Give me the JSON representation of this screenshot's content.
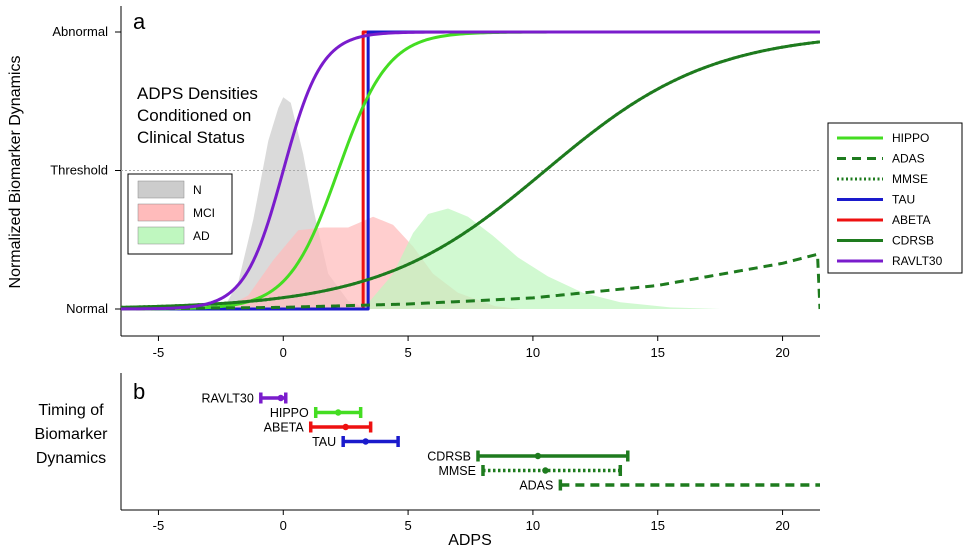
{
  "chart_data": [
    {
      "panel": "a",
      "type": "line",
      "ylabel": "Normalized Biomarker Dynamics",
      "xlim": [
        -6.5,
        21.5
      ],
      "ylim": [
        -0.1,
        1.06
      ],
      "x_ticks": [
        -5,
        0,
        5,
        10,
        15,
        20
      ],
      "y_ticks": [
        {
          "value": 0,
          "label": "Normal"
        },
        {
          "value": 0.5,
          "label": "Threshold"
        },
        {
          "value": 1,
          "label": "Abnormal"
        }
      ],
      "threshold_line": {
        "y": 0.5,
        "color": "#aaaaaa",
        "style": "dotted"
      },
      "inset_title": [
        "ADPS Densities",
        "Conditioned on",
        "Clinical Status"
      ],
      "series": [
        {
          "name": "HIPPO",
          "color": "#44dd22",
          "style": "solid",
          "form": "sigmoid",
          "midpoint": 2.2,
          "slope": 1.0
        },
        {
          "name": "ADAS",
          "color": "#1e7b1e",
          "style": "dashed",
          "form": "exp",
          "x": [
            -6.5,
            0,
            5,
            10,
            15,
            20,
            21.5
          ],
          "y": [
            0.0,
            0.006,
            0.018,
            0.04,
            0.085,
            0.165,
            0.2
          ]
        },
        {
          "name": "MMSE",
          "color": "#1e7b1e",
          "style": "dotted",
          "form": "sigmoid",
          "midpoint": 10.5,
          "slope": 0.3,
          "y0": 0.0
        },
        {
          "name": "TAU",
          "color": "#1a1acc",
          "style": "solid",
          "form": "step",
          "step_x": 3.4
        },
        {
          "name": "ABETA",
          "color": "#ee1111",
          "style": "solid",
          "form": "step",
          "step_x": 3.2
        },
        {
          "name": "CDRSB",
          "color": "#1e7b1e",
          "style": "solid",
          "form": "sigmoid",
          "midpoint": 10.5,
          "slope": 0.3
        },
        {
          "name": "RAVLT30",
          "color": "#7a1ccc",
          "style": "solid",
          "form": "sigmoid",
          "midpoint": 0.0,
          "slope": 1.3
        }
      ],
      "legend": {
        "placement": "right",
        "order": [
          "HIPPO",
          "ADAS",
          "MMSE",
          "TAU",
          "ABETA",
          "CDRSB",
          "RAVLT30"
        ]
      },
      "densities": [
        {
          "name": "N",
          "color": "#cccccc",
          "x": [
            -2.4,
            -1.8,
            -1.2,
            -0.6,
            -0.2,
            0.0,
            0.3,
            0.8,
            1.2,
            1.8,
            2.6,
            3.4
          ],
          "y": [
            0.0,
            0.1,
            0.33,
            0.62,
            0.74,
            0.78,
            0.76,
            0.57,
            0.37,
            0.13,
            0.03,
            0.0
          ]
        },
        {
          "name": "MCI",
          "color": "#ffbbbb",
          "x": [
            -2.4,
            -1.4,
            -0.4,
            0.6,
            1.6,
            2.6,
            3.6,
            4.4,
            5.2,
            6.0,
            7.0,
            8.5,
            9.5
          ],
          "y": [
            0.0,
            0.05,
            0.18,
            0.29,
            0.3,
            0.3,
            0.34,
            0.31,
            0.23,
            0.13,
            0.06,
            0.01,
            0.0
          ]
        },
        {
          "name": "AD",
          "color": "#bff7bf",
          "x": [
            3.2,
            4.4,
            5.2,
            5.8,
            6.6,
            7.4,
            8.4,
            9.4,
            10.6,
            12.0,
            13.5,
            15.5,
            17.5
          ],
          "y": [
            0.0,
            0.13,
            0.28,
            0.35,
            0.37,
            0.34,
            0.27,
            0.19,
            0.12,
            0.06,
            0.025,
            0.006,
            0.0
          ]
        }
      ],
      "density_legend": [
        "N",
        "MCI",
        "AD"
      ]
    },
    {
      "panel": "b",
      "type": "scatter",
      "title_side": [
        "Timing of",
        "Biomarker",
        "Dynamics"
      ],
      "xlabel": "ADPS",
      "xlim": [
        -6.5,
        21.5
      ],
      "x_ticks": [
        -5,
        0,
        5,
        10,
        15,
        20
      ],
      "intervals": [
        {
          "name": "RAVLT30",
          "color": "#7a1ccc",
          "style": "solid",
          "low": -0.9,
          "center": -0.1,
          "high": 0.1
        },
        {
          "name": "HIPPO",
          "color": "#44dd22",
          "style": "solid",
          "low": 1.3,
          "center": 2.2,
          "high": 3.1
        },
        {
          "name": "ABETA",
          "color": "#ee1111",
          "style": "solid",
          "low": 1.1,
          "center": 2.5,
          "high": 3.5
        },
        {
          "name": "TAU",
          "color": "#1a1acc",
          "style": "solid",
          "low": 2.4,
          "center": 3.3,
          "high": 4.6
        },
        {
          "name": "CDRSB",
          "color": "#1e7b1e",
          "style": "solid",
          "low": 7.8,
          "center": 10.2,
          "high": 13.8
        },
        {
          "name": "MMSE",
          "color": "#1e7b1e",
          "style": "dotted",
          "low": 8.0,
          "center": 10.5,
          "high": 13.5
        },
        {
          "name": "ADAS",
          "color": "#1e7b1e",
          "style": "dashed",
          "low": 11.1,
          "center": null,
          "high": 21.5
        }
      ]
    }
  ]
}
